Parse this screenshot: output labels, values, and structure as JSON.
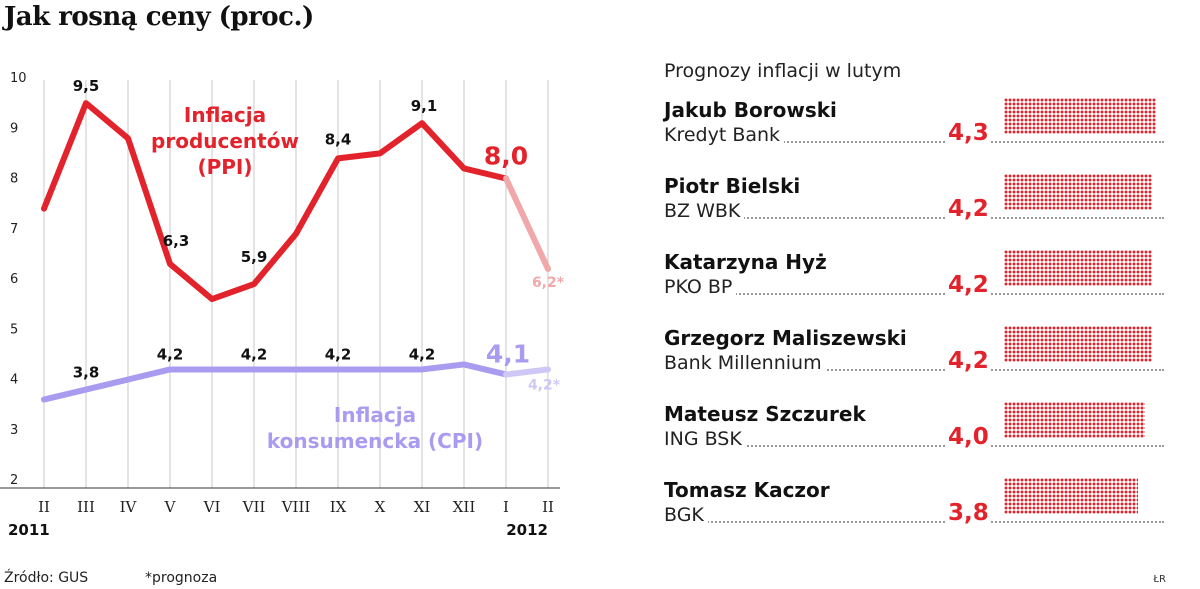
{
  "title": "Jak rosną ceny (proc.)",
  "chart_data": {
    "type": "line",
    "categories": [
      "II",
      "III",
      "IV",
      "V",
      "VI",
      "VII",
      "VIII",
      "IX",
      "X",
      "XI",
      "XII",
      "I",
      "II"
    ],
    "year_labels": [
      "2011",
      "2012"
    ],
    "y_ticks": [
      "2",
      "3",
      "4",
      "5",
      "6",
      "7",
      "8",
      "9",
      "10"
    ],
    "ylim": [
      2,
      10
    ],
    "grid": "vertical",
    "series": [
      {
        "name": "Inflacja producentów (PPI)",
        "name_lines": [
          "Inflacja",
          "producentów",
          "(PPI)"
        ],
        "values": [
          7.4,
          9.5,
          8.8,
          6.3,
          5.6,
          5.9,
          6.9,
          8.4,
          8.5,
          9.1,
          8.2,
          8.0,
          6.2
        ],
        "color": "#e3232c",
        "forecast_color": "#f0a8ab",
        "labels": [
          "",
          "9,5",
          "",
          "6,3",
          "",
          "5,9",
          "",
          "8,4",
          "",
          "9,1",
          "",
          "8,0",
          "6,2*"
        ]
      },
      {
        "name": "Inflacja konsumencka (CPI)",
        "name_lines": [
          "Inflacja",
          "konsumencka (CPI)"
        ],
        "values": [
          3.6,
          3.8,
          4.0,
          4.2,
          4.2,
          4.2,
          4.2,
          4.2,
          4.2,
          4.2,
          4.3,
          4.1,
          4.2
        ],
        "color": "#a99cf0",
        "forecast_color": "#cfc8f7",
        "labels": [
          "",
          "3,8",
          "",
          "4,2",
          "",
          "4,2",
          "",
          "4,2",
          "",
          "4,2",
          "",
          "4,1",
          "4,2*"
        ]
      }
    ]
  },
  "forecasts": {
    "title": "Prognozy inflacji w lutym",
    "bar_color": "#e3232c",
    "entries": [
      {
        "person": "Jakub Borowski",
        "institution": "Kredyt Bank",
        "value_label": "4,3",
        "value": 4.3
      },
      {
        "person": "Piotr Bielski",
        "institution": "BZ WBK",
        "value_label": "4,2",
        "value": 4.2
      },
      {
        "person": "Katarzyna Hyż",
        "institution": "PKO BP",
        "value_label": "4,2",
        "value": 4.2
      },
      {
        "person": "Grzegorz Maliszewski",
        "institution": "Bank Millennium",
        "value_label": "4,2",
        "value": 4.2
      },
      {
        "person": "Mateusz Szczurek",
        "institution": "ING BSK",
        "value_label": "4,0",
        "value": 4.0
      },
      {
        "person": "Tomasz Kaczor",
        "institution": "BGK",
        "value_label": "3,8",
        "value": 3.8
      }
    ]
  },
  "footer": {
    "source": "Źródło: GUS",
    "note": "*prognoza",
    "credit": "ŁR"
  }
}
